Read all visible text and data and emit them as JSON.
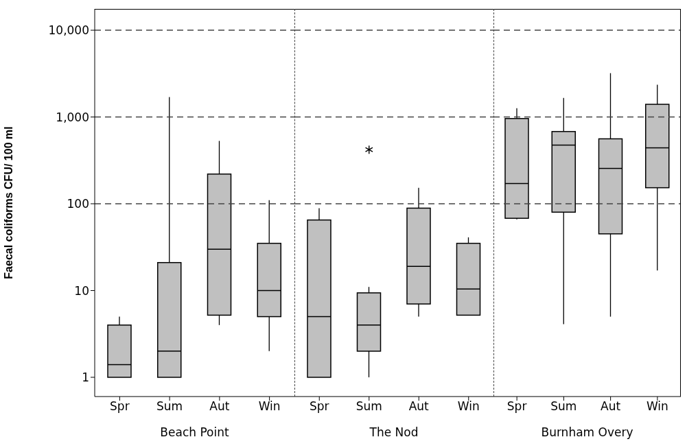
{
  "chart_data": [
    {
      "type": "box",
      "xlabel": "Beach Point",
      "ylabel": "Faecal coliforms CFU/ 100 ml",
      "categories": [
        "Spr",
        "Sum",
        "Aut",
        "Win"
      ],
      "log": true,
      "ylim": [
        0.6,
        17600
      ],
      "yticks": [
        1,
        10,
        100,
        {
          "value": 1000,
          "label": "1,000"
        },
        {
          "value": 10000,
          "label": "10,000"
        }
      ],
      "ref_lines": [
        {
          "axis": "y",
          "value": 100,
          "line_style": "dashed"
        },
        {
          "axis": "y",
          "value": 1000,
          "line_style": "dashed"
        },
        {
          "axis": "y",
          "value": 10000,
          "line_style": "dashed"
        }
      ],
      "series": [
        {
          "color": "#c0c0c0",
          "boxes": [
            {
              "low": 1,
              "q1": 1,
              "median": 1.4,
              "q3": 4,
              "high": 5
            },
            {
              "low": 1,
              "q1": 1,
              "median": 2,
              "q3": 21,
              "high": 1700
            },
            {
              "low": 4,
              "q1": 5.2,
              "median": 30,
              "q3": 220,
              "high": 530
            },
            {
              "low": 2,
              "q1": 5,
              "median": 10,
              "q3": 35,
              "high": 110
            }
          ]
        }
      ]
    },
    {
      "type": "box",
      "xlabel": "The Nod",
      "categories": [
        "Spr",
        "Sum",
        "Aut",
        "Win"
      ],
      "log": true,
      "ylim": [
        0.6,
        17600
      ],
      "tick_labels": "x",
      "ref_lines": [
        {
          "axis": "y",
          "value": 100,
          "line_style": "dashed"
        },
        {
          "axis": "y",
          "value": 1000,
          "line_style": "dashed"
        },
        {
          "axis": "y",
          "value": 10000,
          "line_style": "dashed"
        }
      ],
      "series": [
        {
          "color": "#c0c0c0",
          "boxes": [
            {
              "low": 1,
              "q1": 1,
              "median": 5,
              "q3": 65,
              "high": 89
            },
            {
              "low": 1,
              "q1": 2,
              "median": 4,
              "q3": 9.4,
              "high": 11,
              "outliers": [
                420
              ]
            },
            {
              "low": 5,
              "q1": 7,
              "median": 19,
              "q3": 89,
              "high": 153
            },
            {
              "low": 5.2,
              "q1": 5.2,
              "median": 10.4,
              "q3": 35,
              "high": 41
            }
          ]
        }
      ]
    },
    {
      "type": "box",
      "xlabel": "Burnham Overy",
      "categories": [
        "Spr",
        "Sum",
        "Aut",
        "Win"
      ],
      "log": true,
      "ylim": [
        0.6,
        17600
      ],
      "tick_labels": "x",
      "ref_lines": [
        {
          "axis": "y",
          "value": 100,
          "line_style": "dashed"
        },
        {
          "axis": "y",
          "value": 1000,
          "line_style": "dashed"
        },
        {
          "axis": "y",
          "value": 10000,
          "line_style": "dashed"
        }
      ],
      "series": [
        {
          "color": "#c0c0c0",
          "boxes": [
            {
              "low": 66,
              "q1": 68,
              "median": 171,
              "q3": 960,
              "high": 1260
            },
            {
              "low": 4.1,
              "q1": 80,
              "median": 474,
              "q3": 680,
              "high": 1660
            },
            {
              "low": 5,
              "q1": 45,
              "median": 255,
              "q3": 560,
              "high": 3200
            },
            {
              "low": 17,
              "q1": 153,
              "median": 440,
              "q3": 1400,
              "high": 2350
            }
          ]
        }
      ]
    }
  ]
}
